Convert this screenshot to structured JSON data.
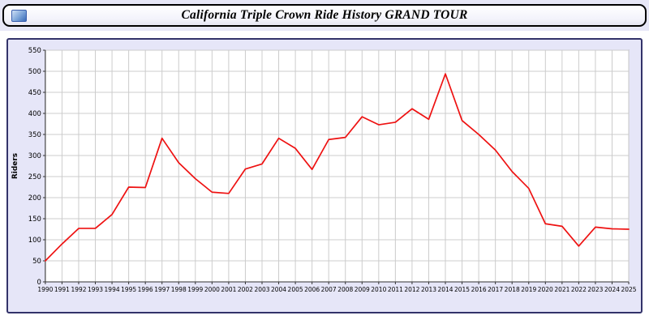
{
  "header": {
    "title": "California Triple Crown Ride History GRAND TOUR"
  },
  "icons": {
    "logo": "photo-icon"
  },
  "colors": {
    "page_top_strip": "#e7e7f7",
    "panel_background": "#e6e6f8",
    "panel_border": "#33336a",
    "plot_background": "#ffffff",
    "grid": "#cccccc",
    "plot_border": "#888888",
    "axis": "#333333",
    "line": "#ee1111",
    "tick_text": "#000000"
  },
  "chart_data": {
    "type": "line",
    "title": "California Triple Crown Ride History GRAND TOUR",
    "xlabel": "",
    "ylabel": "Riders",
    "ylim": [
      0,
      550
    ],
    "ytick_step": 50,
    "grid": true,
    "legend": "none",
    "x": [
      1990,
      1991,
      1992,
      1993,
      1994,
      1995,
      1996,
      1997,
      1998,
      1999,
      2000,
      2001,
      2002,
      2003,
      2004,
      2005,
      2006,
      2007,
      2008,
      2009,
      2010,
      2011,
      2012,
      2013,
      2014,
      2015,
      2016,
      2017,
      2018,
      2019,
      2020,
      2021,
      2022,
      2023,
      2024,
      2025
    ],
    "series": [
      {
        "name": "Riders",
        "values": [
          50,
          90,
          127,
          127,
          160,
          225,
          224,
          341,
          283,
          245,
          213,
          210,
          268,
          280,
          341,
          317,
          267,
          338,
          343,
          392,
          373,
          379,
          411,
          386,
          494,
          383,
          350,
          313,
          262,
          222,
          138,
          132,
          85,
          130,
          126,
          125
        ]
      }
    ]
  }
}
